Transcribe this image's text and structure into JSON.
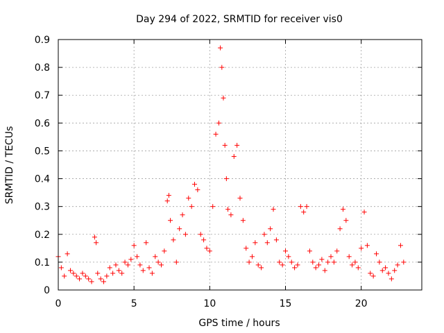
{
  "chart_data": {
    "type": "scatter",
    "title": "Day 294 of 2022, SRMTID for receiver vis0",
    "xlabel": "GPS time / hours",
    "ylabel": "SRMTID / TECUs",
    "xlim": [
      0,
      24
    ],
    "ylim": [
      0,
      0.9
    ],
    "xticks": [
      0,
      5,
      10,
      15,
      20
    ],
    "xtick_labels": [
      "0",
      "5",
      "10",
      "15",
      "20"
    ],
    "yticks": [
      0,
      0.1,
      0.2,
      0.3,
      0.4,
      0.5,
      0.6,
      0.7,
      0.8,
      0.9
    ],
    "ytick_labels": [
      "0",
      "0.1",
      "0.2",
      "0.3",
      "0.4",
      "0.5",
      "0.6",
      "0.7",
      "0.8",
      "0.9"
    ],
    "grid": true,
    "marker": "+",
    "marker_color": "#ff0000",
    "series": [
      {
        "name": "SRMTID",
        "x": [
          0.0,
          0.2,
          0.4,
          0.6,
          0.8,
          1.0,
          1.2,
          1.4,
          1.6,
          1.8,
          2.0,
          2.2,
          2.4,
          2.5,
          2.6,
          2.8,
          3.0,
          3.2,
          3.4,
          3.6,
          3.8,
          4.0,
          4.2,
          4.4,
          4.6,
          4.8,
          5.0,
          5.2,
          5.4,
          5.6,
          5.8,
          6.0,
          6.2,
          6.4,
          6.6,
          6.8,
          7.0,
          7.2,
          7.3,
          7.4,
          7.6,
          7.8,
          8.0,
          8.2,
          8.4,
          8.6,
          8.8,
          9.0,
          9.2,
          9.4,
          9.6,
          9.8,
          10.0,
          10.2,
          10.4,
          10.6,
          10.7,
          10.8,
          10.9,
          11.0,
          11.1,
          11.2,
          11.4,
          11.6,
          11.8,
          12.0,
          12.2,
          12.4,
          12.6,
          12.8,
          13.0,
          13.2,
          13.4,
          13.6,
          13.8,
          14.0,
          14.2,
          14.4,
          14.6,
          14.8,
          15.0,
          15.2,
          15.4,
          15.6,
          15.8,
          16.0,
          16.2,
          16.4,
          16.6,
          16.8,
          17.0,
          17.2,
          17.4,
          17.6,
          17.8,
          18.0,
          18.2,
          18.4,
          18.6,
          18.8,
          19.0,
          19.2,
          19.4,
          19.6,
          19.8,
          20.0,
          20.2,
          20.4,
          20.6,
          20.8,
          21.0,
          21.2,
          21.4,
          21.6,
          21.8,
          22.0,
          22.2,
          22.4,
          22.6,
          22.8
        ],
        "y": [
          0.12,
          0.08,
          0.05,
          0.13,
          0.07,
          0.06,
          0.05,
          0.04,
          0.06,
          0.05,
          0.04,
          0.03,
          0.19,
          0.17,
          0.06,
          0.04,
          0.03,
          0.05,
          0.08,
          0.06,
          0.09,
          0.07,
          0.06,
          0.1,
          0.09,
          0.11,
          0.16,
          0.12,
          0.09,
          0.07,
          0.17,
          0.08,
          0.06,
          0.12,
          0.1,
          0.09,
          0.14,
          0.32,
          0.34,
          0.25,
          0.18,
          0.1,
          0.22,
          0.27,
          0.2,
          0.33,
          0.3,
          0.38,
          0.36,
          0.2,
          0.18,
          0.15,
          0.14,
          0.3,
          0.56,
          0.6,
          0.87,
          0.8,
          0.69,
          0.52,
          0.4,
          0.29,
          0.27,
          0.48,
          0.52,
          0.33,
          0.25,
          0.15,
          0.1,
          0.12,
          0.17,
          0.09,
          0.08,
          0.2,
          0.17,
          0.22,
          0.29,
          0.18,
          0.1,
          0.09,
          0.14,
          0.12,
          0.1,
          0.08,
          0.09,
          0.3,
          0.28,
          0.3,
          0.14,
          0.1,
          0.08,
          0.09,
          0.11,
          0.07,
          0.1,
          0.12,
          0.1,
          0.14,
          0.22,
          0.29,
          0.25,
          0.12,
          0.09,
          0.1,
          0.08,
          0.15,
          0.28,
          0.16,
          0.06,
          0.05,
          0.13,
          0.1,
          0.07,
          0.08,
          0.06,
          0.04,
          0.07,
          0.09,
          0.16,
          0.1
        ]
      }
    ]
  }
}
